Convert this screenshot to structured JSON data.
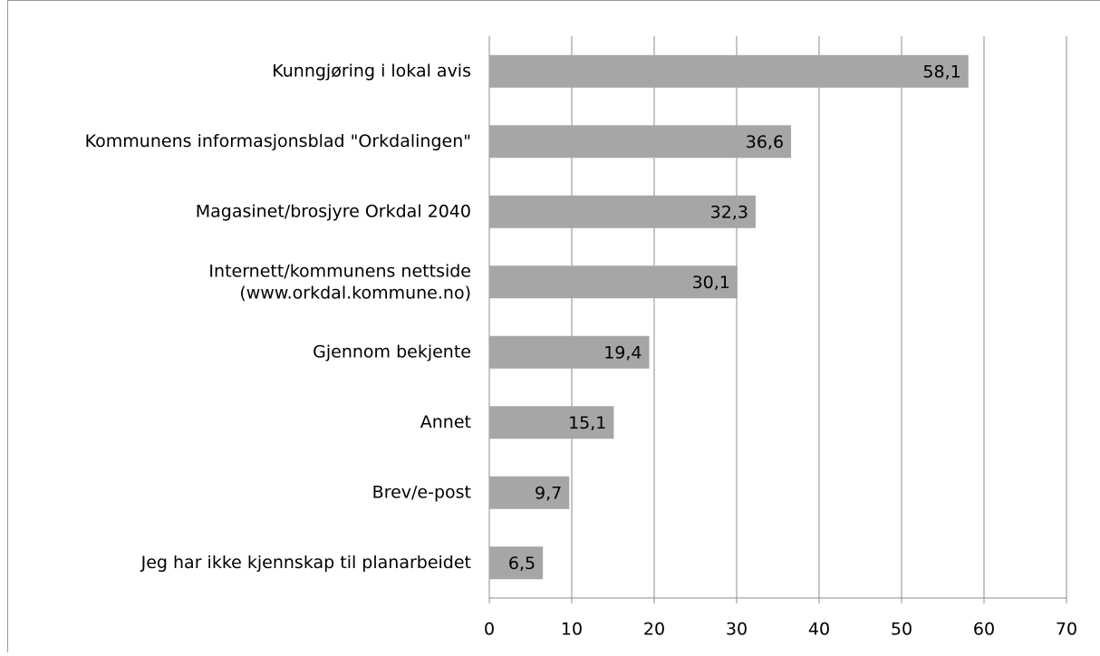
{
  "chart_data": {
    "type": "barh",
    "categories": [
      "Kunngjøring i lokal avis",
      "Kommunens informasjonsblad \"Orkdalingen\"",
      "Magasinet/brosjyre Orkdal 2040",
      "Internett/kommunens nettside\n(www.orkdal.kommune.no)",
      "Gjennom bekjente",
      "Annet",
      "Brev/e-post",
      "Jeg har ikke kjennskap til planarbeidet"
    ],
    "values": [
      58.1,
      36.6,
      32.3,
      30.1,
      19.4,
      15.1,
      9.7,
      6.5
    ],
    "value_labels": [
      "58,1",
      "36,6",
      "32,3",
      "30,1",
      "19,4",
      "15,1",
      "9,7",
      "6,5"
    ],
    "color": "#a6a6a6",
    "xlim": [
      0,
      70
    ],
    "xticks": [
      0,
      10,
      20,
      30,
      40,
      50,
      60,
      70
    ],
    "grid": true
  }
}
